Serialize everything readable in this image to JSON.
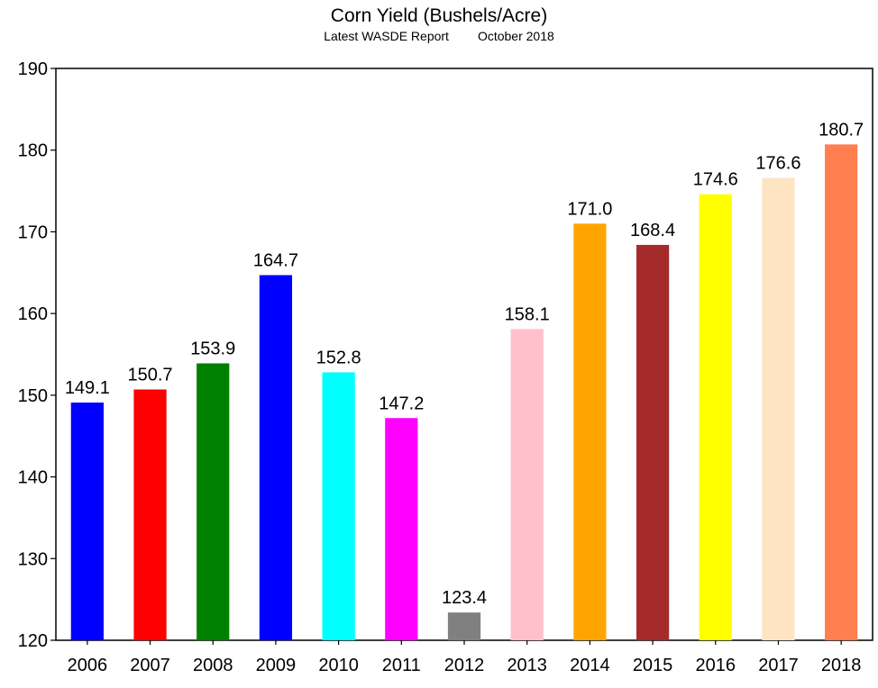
{
  "chart_data": {
    "type": "bar",
    "title": "Corn Yield (Bushels/Acre)",
    "subtitle_left": "Latest WASDE Report",
    "subtitle_right": "October 2018",
    "xlabel": "",
    "ylabel": "",
    "categories": [
      "2006",
      "2007",
      "2008",
      "2009",
      "2010",
      "2011",
      "2012",
      "2013",
      "2014",
      "2015",
      "2016",
      "2017",
      "2018"
    ],
    "values": [
      149.1,
      150.7,
      153.9,
      164.7,
      152.8,
      147.2,
      123.4,
      158.1,
      171.0,
      168.4,
      174.6,
      176.6,
      180.7
    ],
    "value_labels": [
      "149.1",
      "150.7",
      "153.9",
      "164.7",
      "152.8",
      "147.2",
      "123.4",
      "158.1",
      "171.0",
      "168.4",
      "174.6",
      "176.6",
      "180.7"
    ],
    "colors": [
      "#0000ff",
      "#ff0000",
      "#008000",
      "#0000ff",
      "#00ffff",
      "#ff00ff",
      "#808080",
      "#ffc0cb",
      "#ffa500",
      "#a52a2a",
      "#ffff00",
      "#ffe4c4",
      "#ff7f50"
    ],
    "ylim": [
      120,
      190
    ],
    "yticks": [
      "120",
      "130",
      "140",
      "150",
      "160",
      "170",
      "180",
      "190"
    ],
    "grid": false,
    "legend": "none"
  }
}
